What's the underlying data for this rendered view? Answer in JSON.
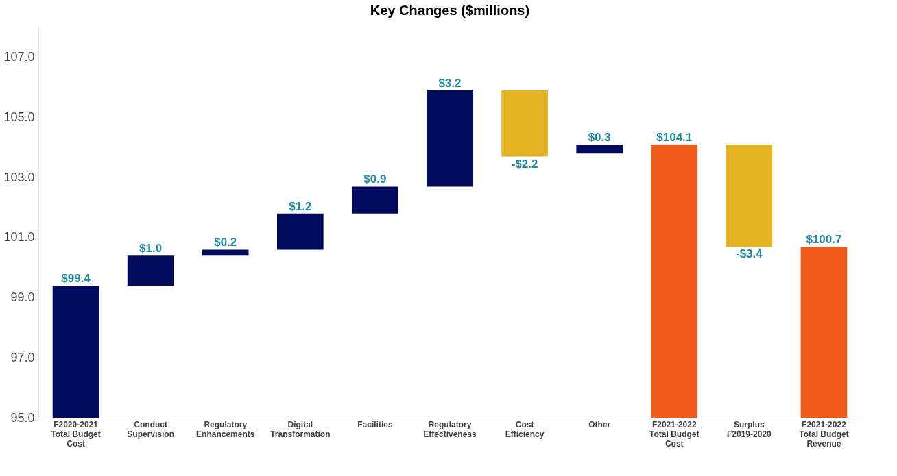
{
  "chart_data": {
    "type": "bar",
    "title": "Key Changes ($millions)",
    "categories": [
      "F2020-2021 Total Budget Cost",
      "Conduct Supervision",
      "Regulatory Enhancements",
      "Digital Transformation",
      "Facilities",
      "Regulatory Effectiveness",
      "Cost Efficiency",
      "Other",
      "F2021-2022 Total Budget Cost",
      "Surplus F2019-2020",
      "F2021-2022 Total Budget Revenue"
    ],
    "values": [
      99.4,
      1.0,
      0.2,
      1.2,
      0.9,
      3.2,
      -2.2,
      0.3,
      104.1,
      -3.4,
      100.7
    ],
    "base": [
      0,
      99.4,
      100.4,
      100.6,
      101.8,
      102.7,
      105.9,
      103.8,
      0,
      104.1,
      0
    ],
    "colors": [
      "#000b5e",
      "#000b5e",
      "#000b5e",
      "#000b5e",
      "#000b5e",
      "#000b5e",
      "#e3b323",
      "#000b5e",
      "#f05a1a",
      "#e3b323",
      "#f05a1a"
    ],
    "value_labels": [
      "$99.4",
      "$1.0",
      "$0.2",
      "$1.2",
      "$0.9",
      "$3.2",
      "-$2.2",
      "$0.3",
      "$104.1",
      "-$3.4",
      "$100.7"
    ],
    "ylim": [
      95,
      108
    ],
    "yticks": [
      {
        "value": 95,
        "label": "95.0"
      },
      {
        "value": 97,
        "label": "97.0"
      },
      {
        "value": 99,
        "label": "99.0"
      },
      {
        "value": 101,
        "label": "101.0"
      },
      {
        "value": 103,
        "label": "103.0"
      },
      {
        "value": 105,
        "label": "105.0"
      },
      {
        "value": 107,
        "label": "107.0"
      }
    ],
    "grid": false
  }
}
